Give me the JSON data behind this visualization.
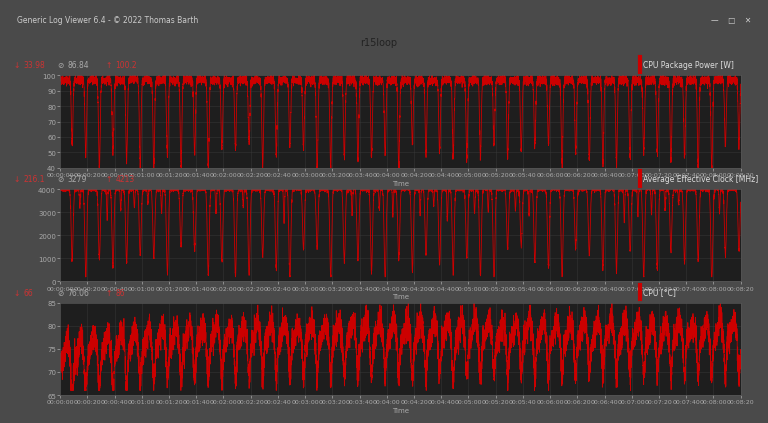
{
  "title": "r15loop",
  "window_title": "Generic Log Viewer 6.4 - © 2022 Thomas Barth",
  "plot_bg_color": "#1e1e1e",
  "outer_bg_color": "#4a4a4a",
  "separator_color": "#5a5a5a",
  "line_color": "#cc0000",
  "grid_color": "#3a3a3a",
  "tick_color": "#aaaaaa",
  "label_color": "#dddddd",
  "stat_min_color": "#cc3333",
  "stat_avg_color": "#aaaaaa",
  "stat_max_color": "#cc3333",
  "panel1": {
    "label": "CPU Package Power [W]",
    "min_val": "33.98",
    "avg_val": "86.84",
    "max_val": "100.2",
    "ylim": [
      40,
      100
    ],
    "yticks": [
      40,
      50,
      60,
      70,
      80,
      90,
      100
    ]
  },
  "panel2": {
    "label": "Average Effective Clock [MHz]",
    "min_val": "216.1",
    "avg_val": "3279",
    "max_val": "4213",
    "ylim": [
      0,
      4000
    ],
    "yticks": [
      0,
      1000,
      2000,
      3000,
      4000
    ]
  },
  "panel3": {
    "label": "CPU [°C]",
    "min_val": "66",
    "avg_val": "76.06",
    "max_val": "86",
    "ylim": [
      65,
      85
    ],
    "yticks": [
      65,
      70,
      75,
      80,
      85
    ]
  },
  "duration_seconds": 500,
  "num_cycles": 50,
  "xlabel": "Time"
}
